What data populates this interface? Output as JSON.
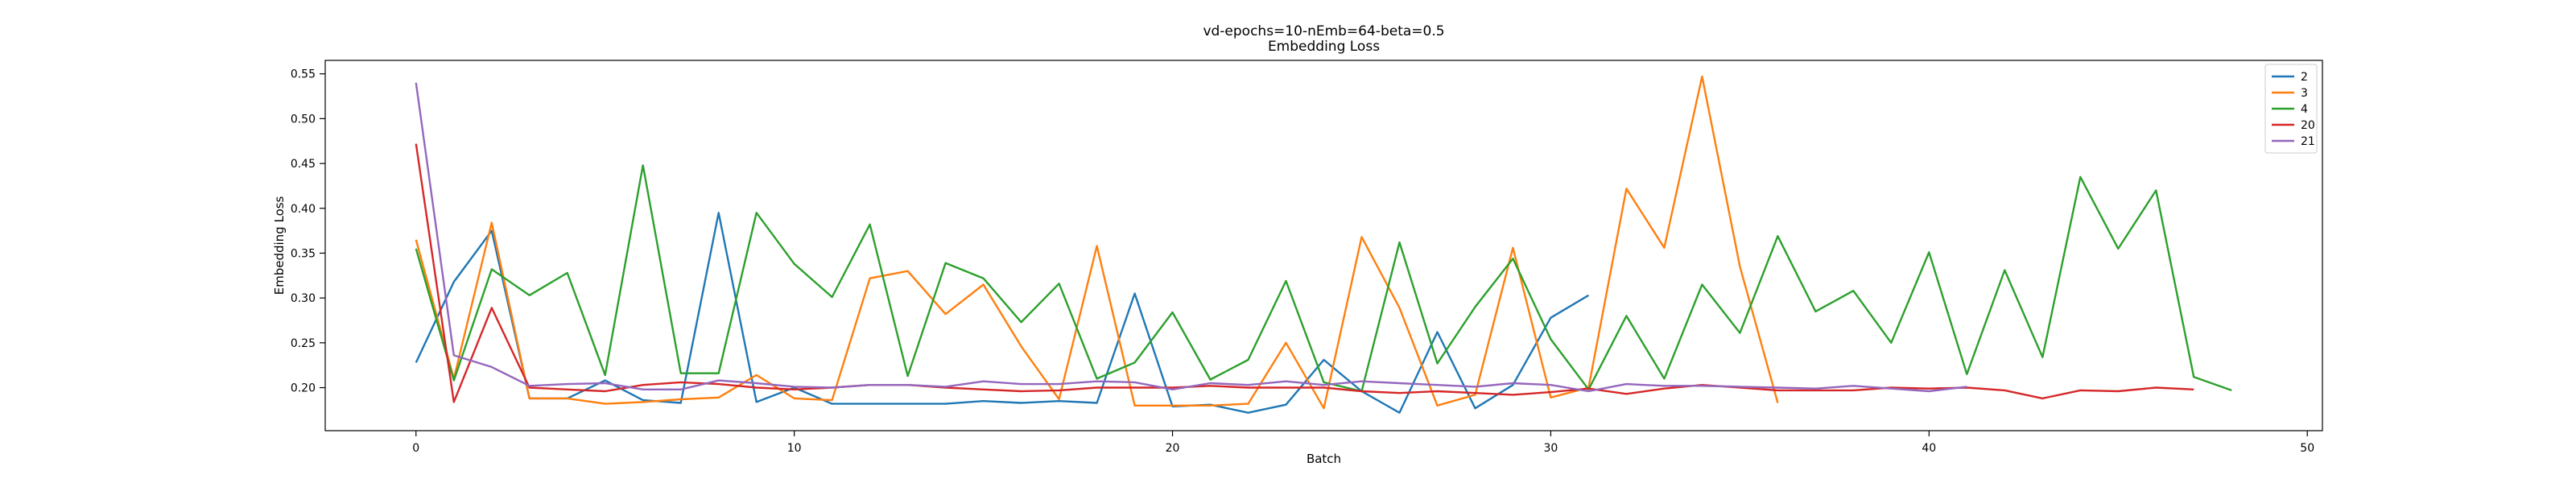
{
  "chart_data": {
    "type": "line",
    "title": "vd-epochs=10-nEmb=64-beta=0.5",
    "subtitle": "Embedding Loss",
    "xlabel": "Batch",
    "ylabel": "Embedding Loss",
    "xlim": [
      -2.4,
      50.4
    ],
    "ylim": [
      0.152,
      0.565
    ],
    "xticks": [
      0,
      10,
      20,
      30,
      40,
      50
    ],
    "yticks": [
      0.2,
      0.25,
      0.3,
      0.35,
      0.4,
      0.45,
      0.5,
      0.55
    ],
    "grid": false,
    "legend_position": "top-right",
    "series": [
      {
        "name": "2",
        "color": "#1f77b4",
        "values": [
          0.228,
          0.318,
          0.375,
          0.188,
          0.188,
          0.208,
          0.186,
          0.183,
          0.395,
          0.184,
          0.2,
          0.182,
          0.182,
          0.182,
          0.182,
          0.185,
          0.183,
          0.185,
          0.183,
          0.305,
          0.179,
          0.181,
          0.172,
          0.181,
          0.231,
          0.196,
          0.172,
          0.262,
          0.177,
          0.203,
          0.278,
          0.303
        ]
      },
      {
        "name": "3",
        "color": "#ff7f0e",
        "values": [
          0.365,
          0.21,
          0.384,
          0.188,
          0.188,
          0.182,
          0.184,
          0.187,
          0.189,
          0.214,
          0.188,
          0.186,
          0.322,
          0.33,
          0.282,
          0.315,
          0.246,
          0.187,
          0.358,
          0.18,
          0.18,
          0.18,
          0.182,
          0.25,
          0.177,
          0.368,
          0.289,
          0.18,
          0.192,
          0.356,
          0.189,
          0.2,
          0.422,
          0.356,
          0.547,
          0.335,
          0.183
        ]
      },
      {
        "name": "4",
        "color": "#2ca02c",
        "values": [
          0.355,
          0.208,
          0.332,
          0.303,
          0.328,
          0.214,
          0.448,
          0.216,
          0.216,
          0.395,
          0.338,
          0.301,
          0.382,
          0.213,
          0.339,
          0.322,
          0.273,
          0.316,
          0.21,
          0.228,
          0.284,
          0.209,
          0.231,
          0.319,
          0.206,
          0.196,
          0.362,
          0.227,
          0.29,
          0.344,
          0.254,
          0.198,
          0.28,
          0.21,
          0.315,
          0.261,
          0.369,
          0.285,
          0.308,
          0.25,
          0.351,
          0.215,
          0.331,
          0.234,
          0.435,
          0.355,
          0.42,
          0.212,
          0.197
        ]
      },
      {
        "name": "20",
        "color": "#d62728",
        "values": [
          0.472,
          0.184,
          0.289,
          0.2,
          0.198,
          0.196,
          0.203,
          0.206,
          0.204,
          0.2,
          0.198,
          0.2,
          0.203,
          0.203,
          0.2,
          0.198,
          0.196,
          0.197,
          0.2,
          0.2,
          0.2,
          0.202,
          0.2,
          0.2,
          0.2,
          0.196,
          0.194,
          0.196,
          0.194,
          0.192,
          0.195,
          0.199,
          0.193,
          0.199,
          0.203,
          0.2,
          0.197,
          0.197,
          0.197,
          0.2,
          0.199,
          0.2,
          0.197,
          0.188,
          0.197,
          0.196,
          0.2,
          0.198
        ]
      },
      {
        "name": "21",
        "color": "#9467bd",
        "values": [
          0.54,
          0.236,
          0.223,
          0.202,
          0.204,
          0.205,
          0.198,
          0.198,
          0.208,
          0.205,
          0.201,
          0.2,
          0.203,
          0.203,
          0.201,
          0.207,
          0.204,
          0.204,
          0.207,
          0.206,
          0.198,
          0.205,
          0.203,
          0.207,
          0.203,
          0.207,
          0.205,
          0.203,
          0.201,
          0.205,
          0.203,
          0.196,
          0.204,
          0.202,
          0.202,
          0.201,
          0.2,
          0.199,
          0.202,
          0.199,
          0.196,
          0.201
        ]
      }
    ]
  }
}
